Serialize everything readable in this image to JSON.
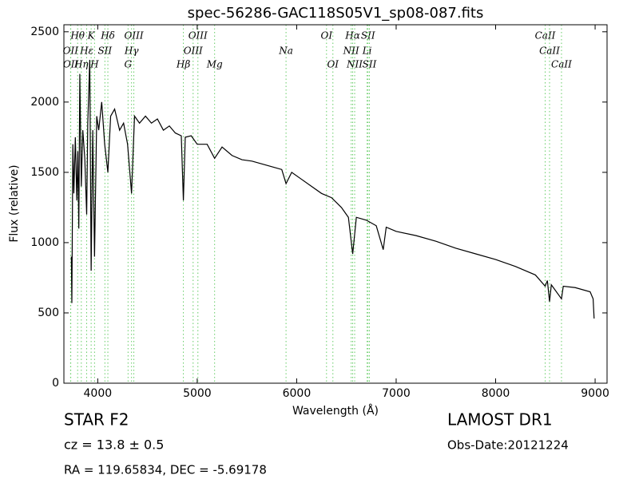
{
  "chart_data": {
    "type": "line",
    "title": "spec-56286-GAC118S05V1_sp08-087.fits",
    "x_label": "Wavelength (Å)",
    "y_label": "Flux (relative)",
    "annotations": {
      "object": "STAR   F2",
      "cz": "cz = 13.8 ± 0.5",
      "coords": "RA = 119.65834, DEC = -5.69178",
      "survey": "LAMOST DR1",
      "obs_date": "Obs-Date:20121224"
    },
    "line_color": "#000000",
    "feature_color": "#66cc66",
    "xlim": [
      3660,
      9120
    ],
    "ylim": [
      0,
      2550
    ],
    "xticks": [
      4000,
      5000,
      6000,
      7000,
      8000,
      9000
    ],
    "yticks": [
      0,
      500,
      1000,
      1500,
      2000,
      2500
    ],
    "x": [
      3735,
      3740,
      3750,
      3760,
      3775,
      3790,
      3800,
      3810,
      3820,
      3835,
      3850,
      3870,
      3889,
      3900,
      3920,
      3934,
      3950,
      3968,
      3990,
      4010,
      4040,
      4070,
      4102,
      4130,
      4170,
      4220,
      4260,
      4300,
      4340,
      4370,
      4420,
      4480,
      4540,
      4600,
      4660,
      4720,
      4780,
      4840,
      4861,
      4880,
      4940,
      5000,
      5100,
      5175,
      5250,
      5350,
      5450,
      5550,
      5650,
      5750,
      5850,
      5893,
      5950,
      6050,
      6150,
      6250,
      6350,
      6450,
      6520,
      6563,
      6600,
      6700,
      6800,
      6870,
      6900,
      7000,
      7200,
      7400,
      7600,
      7800,
      8000,
      8200,
      8400,
      8498,
      8520,
      8542,
      8560,
      8662,
      8680,
      8800,
      8950,
      8980,
      8990
    ],
    "values": [
      900,
      570,
      1700,
      1350,
      1750,
      1300,
      1650,
      1100,
      2200,
      1400,
      1800,
      1600,
      1200,
      1850,
      2300,
      800,
      1800,
      900,
      1900,
      1800,
      2000,
      1700,
      1500,
      1900,
      1950,
      1800,
      1850,
      1700,
      1350,
      1900,
      1850,
      1900,
      1850,
      1880,
      1800,
      1830,
      1780,
      1760,
      1300,
      1750,
      1760,
      1700,
      1700,
      1600,
      1680,
      1620,
      1590,
      1580,
      1560,
      1540,
      1520,
      1420,
      1500,
      1450,
      1400,
      1350,
      1320,
      1250,
      1180,
      920,
      1180,
      1160,
      1120,
      950,
      1110,
      1080,
      1050,
      1010,
      960,
      920,
      880,
      830,
      770,
      690,
      730,
      580,
      700,
      600,
      690,
      680,
      650,
      600,
      460
    ],
    "feature_rows": [
      [
        {
          "label": "Hθ",
          "x": 3798
        },
        {
          "label": "K",
          "x": 3934
        },
        {
          "label": "Hδ",
          "x": 4102
        },
        {
          "label": "OIII",
          "x": 4363
        },
        {
          "label": "OIII",
          "x": 5007
        },
        {
          "label": "OI",
          "x": 6300
        },
        {
          "label": "Hα",
          "x": 6563
        },
        {
          "label": "SII",
          "x": 6717
        },
        {
          "label": "CaII",
          "x": 8498
        }
      ],
      [
        {
          "label": "OII",
          "x": 3727
        },
        {
          "label": "Hε",
          "x": 3889
        },
        {
          "label": "SII",
          "x": 4072
        },
        {
          "label": "Hγ",
          "x": 4340
        },
        {
          "label": "OIII",
          "x": 4959
        },
        {
          "label": "Na",
          "x": 5893
        },
        {
          "label": "NII",
          "x": 6548
        },
        {
          "label": "Li",
          "x": 6708
        },
        {
          "label": "CaII",
          "x": 8542
        }
      ],
      [
        {
          "label": "OII",
          "x": 3729
        },
        {
          "label": "Hη",
          "x": 3835
        },
        {
          "label": "H",
          "x": 3968
        },
        {
          "label": "G",
          "x": 4305
        },
        {
          "label": "Hβ",
          "x": 4861
        },
        {
          "label": "Mg",
          "x": 5175
        },
        {
          "label": "OI",
          "x": 6364
        },
        {
          "label": "NII",
          "x": 6583
        },
        {
          "label": "SII",
          "x": 6731
        },
        {
          "label": "CaII",
          "x": 8662
        }
      ]
    ]
  }
}
